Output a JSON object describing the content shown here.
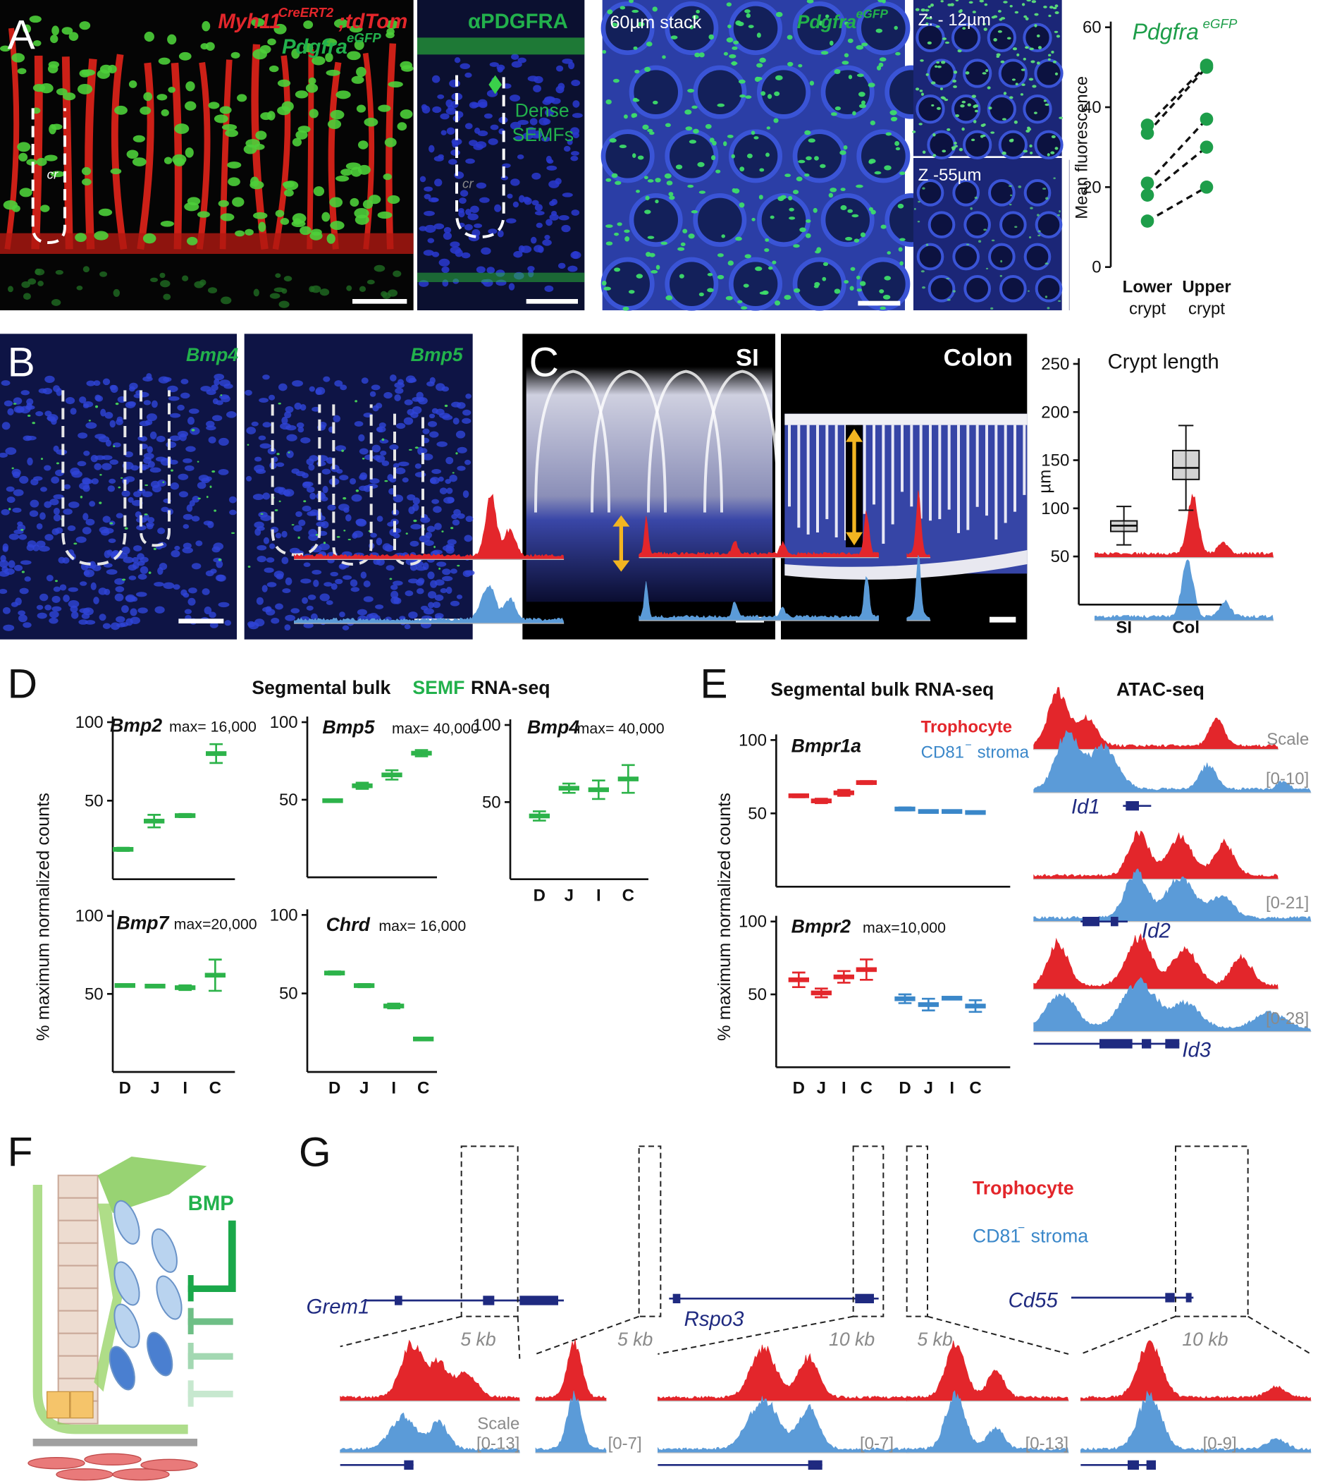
{
  "panels": {
    "A": {
      "letter": "A",
      "image1": [
        "Myh11",
        "CreERT2",
        ";tdTom",
        "Pdgfra",
        "eGFP",
        "cr"
      ],
      "image2": [
        "αPDGFRA",
        "Dense",
        "SEMFs",
        "cr"
      ],
      "image3": [
        "60µm stack",
        "Pdgfra",
        "eGFP"
      ],
      "image4": [
        "Z: - 12µm",
        "Z -55µm"
      ]
    },
    "B": {
      "letter": "B",
      "labels": [
        "Bmp4",
        "Bmp5"
      ]
    },
    "C": {
      "letter": "C",
      "labels": [
        "SI",
        "Colon"
      ]
    },
    "D": {
      "letter": "D",
      "title": [
        "Segmental bulk",
        "SEMF",
        "RNA-seq"
      ],
      "ylabel": "% maximum normalized counts"
    },
    "E": {
      "letter": "E",
      "title": "Segmental bulk RNA-seq",
      "legend": [
        "Trophocyte",
        "CD81",
        "−",
        "stroma"
      ],
      "ylabel": "% maximum normalized counts",
      "atac_title": "ATAC-seq",
      "scale": "Scale",
      "ranges": [
        "[0-10]",
        "[0-21]",
        "[0-28]"
      ],
      "genes": [
        "Id1",
        "Id2",
        "Id3"
      ]
    },
    "F": {
      "letter": "F",
      "label": "BMP"
    },
    "G": {
      "letter": "G",
      "legend": [
        "Trophocyte",
        "CD81",
        "−",
        "stroma"
      ],
      "genes": [
        "Grem1",
        "Rspo3",
        "Cd55"
      ],
      "scales": [
        "5 kb",
        "5 kb",
        "10 kb",
        "5 kb",
        "10 kb"
      ],
      "scale": "Scale",
      "ranges": [
        "[0-13]",
        "[0-7]",
        "[0-7]",
        "[0-13]",
        "[0-9]"
      ]
    }
  },
  "chart_data": [
    {
      "type": "paired",
      "title": "Pdgfra",
      "title_sup": "eGFP",
      "ylabel": "Mean fluorescence",
      "categories": [
        "Lower",
        "Upper"
      ],
      "category_notes": [
        "crypt",
        "crypt"
      ],
      "ylim": [
        0,
        60
      ],
      "yticks": [
        0,
        20,
        40,
        60
      ],
      "color": "#1e9e4a",
      "series": [
        {
          "values": [
            35.5,
            50.5
          ]
        },
        {
          "values": [
            33.5,
            50
          ]
        },
        {
          "values": [
            21,
            37
          ]
        },
        {
          "values": [
            18,
            30
          ]
        },
        {
          "values": [
            11.5,
            20
          ]
        }
      ]
    },
    {
      "type": "box",
      "title": "Crypt length",
      "ylabel": "µm",
      "categories": [
        "SI",
        "Col"
      ],
      "ylim": [
        0,
        250
      ],
      "yticks": [
        50,
        100,
        150,
        200,
        250
      ],
      "color": "#aaaaaa",
      "boxes": [
        {
          "min": 62,
          "q1": 76,
          "median": 82,
          "q3": 87,
          "max": 102
        },
        {
          "min": 98,
          "q1": 130,
          "median": 142,
          "q3": 160,
          "max": 186
        }
      ]
    },
    {
      "type": "errorbar",
      "gene": "Bmp2",
      "max_label": "max= 16,000",
      "ylim": [
        0,
        100
      ],
      "yticks": [
        50,
        100
      ],
      "series": [
        {
          "color": "#2db34a",
          "values": [
            19,
            37,
            40.5,
            80
          ],
          "errors": [
            1,
            4,
            1,
            6
          ]
        }
      ]
    },
    {
      "type": "errorbar",
      "gene": "Bmp5",
      "max_label": "max= 40,000",
      "ylim": [
        0,
        100
      ],
      "yticks": [
        50,
        100
      ],
      "series": [
        {
          "color": "#2db34a",
          "values": [
            49.4,
            59,
            66,
            80
          ],
          "errors": [
            0.8,
            2,
            3,
            2
          ]
        }
      ]
    },
    {
      "type": "errorbar",
      "gene": "Bmp4",
      "max_label": "max= 40,000",
      "categories": [
        "D",
        "J",
        "I",
        "C"
      ],
      "ylim": [
        0,
        100
      ],
      "yticks": [
        50,
        100
      ],
      "series": [
        {
          "color": "#2db34a",
          "values": [
            41,
            59,
            58,
            65
          ],
          "errors": [
            3,
            3,
            6,
            9
          ]
        }
      ]
    },
    {
      "type": "errorbar",
      "gene": "Bmp7",
      "max_label": "max=20,000",
      "categories": [
        "D",
        "J",
        "I",
        "C"
      ],
      "ylim": [
        0,
        100
      ],
      "yticks": [
        50,
        100
      ],
      "series": [
        {
          "color": "#2db34a",
          "values": [
            55.4,
            55,
            54,
            62
          ],
          "errors": [
            0.5,
            0.5,
            1.5,
            10
          ]
        }
      ]
    },
    {
      "type": "errorbar",
      "gene": "Chrd",
      "max_label": "max= 16,000",
      "categories": [
        "D",
        "J",
        "I",
        "C"
      ],
      "ylim": [
        0,
        100
      ],
      "yticks": [
        50,
        100
      ],
      "series": [
        {
          "color": "#2db34a",
          "values": [
            63,
            55,
            42,
            21
          ],
          "errors": [
            1,
            1,
            1.5,
            0.5
          ]
        }
      ]
    },
    {
      "type": "errorbar",
      "gene": "Bmpr1a",
      "ylim": [
        0,
        100
      ],
      "yticks": [
        50,
        100
      ],
      "series": [
        {
          "color": "#e3262b",
          "values": [
            62,
            58.5,
            64,
            71
          ],
          "errors": [
            1,
            1.5,
            2,
            1
          ]
        },
        {
          "color": "#3a87c9",
          "values": [
            53,
            51.3,
            51.3,
            50.6
          ],
          "errors": [
            1,
            0.5,
            0.5,
            0.5
          ]
        }
      ]
    },
    {
      "type": "errorbar",
      "gene": "Bmpr2",
      "max_label": "max=10,000",
      "categories": [
        "D",
        "J",
        "I",
        "C"
      ],
      "ylim": [
        0,
        100
      ],
      "yticks": [
        50,
        100
      ],
      "series": [
        {
          "color": "#e3262b",
          "values": [
            60,
            51,
            62,
            67
          ],
          "errors": [
            5,
            3,
            4,
            7
          ]
        },
        {
          "color": "#3a87c9",
          "values": [
            47,
            43,
            47.4,
            42
          ],
          "errors": [
            3,
            4,
            0.8,
            4
          ]
        }
      ]
    }
  ]
}
